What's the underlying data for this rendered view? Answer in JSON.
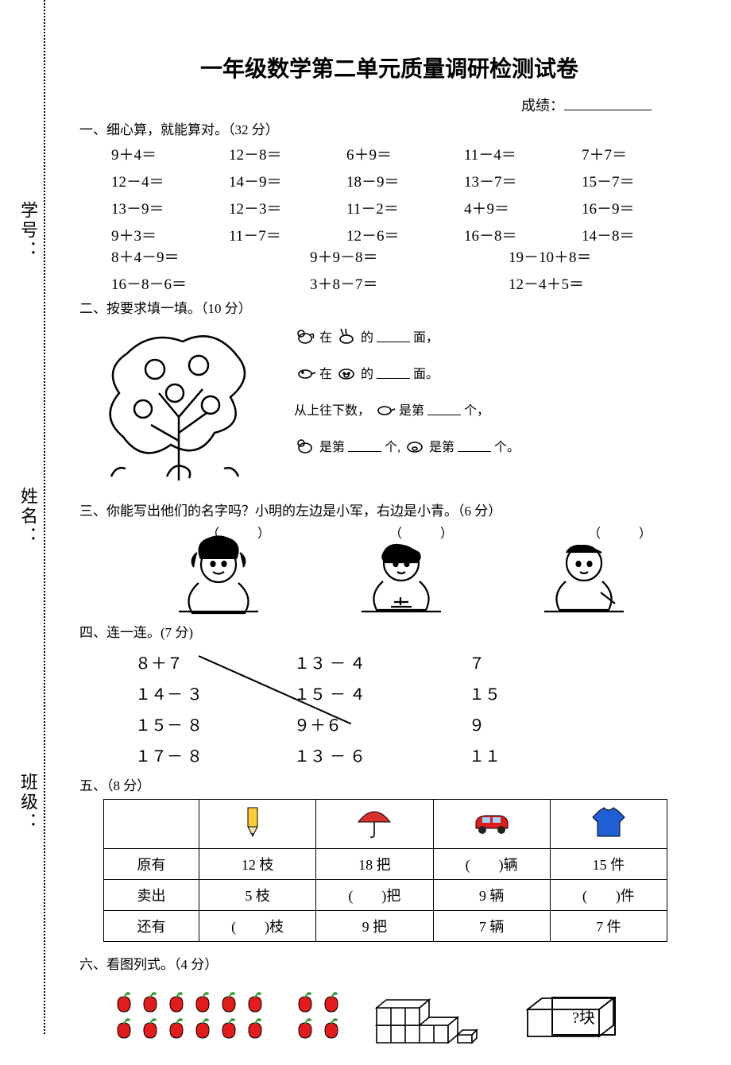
{
  "title": "一年级数学第二单元质量调研检测试卷",
  "score_label": "成绩：",
  "side": {
    "class": "班级：",
    "name": "姓名：",
    "id": "学号："
  },
  "sections": {
    "s1": {
      "heading": "一、细心算，就能算对。（32 分）"
    },
    "s2": {
      "heading": "二、按要求填一填。（10 分）"
    },
    "s3": {
      "heading": "三、你能写出他们的名字吗？小明的左边是小军，右边是小青。（6 分）"
    },
    "s4": {
      "heading": "四、连一连。(7 分)"
    },
    "s5": {
      "heading": "五、（8 分）"
    },
    "s6": {
      "heading": "六、看图列式。（4 分）"
    }
  },
  "q1": {
    "rows5": [
      [
        "9＋4＝",
        "12－8＝",
        "6＋9＝",
        "11－4＝",
        "7＋7＝"
      ],
      [
        "12－4＝",
        "14－9＝",
        "18－9＝",
        "13－7＝",
        "15－7＝"
      ],
      [
        "13－9＝",
        "12－3＝",
        "11－2＝",
        "4＋9＝",
        "16－9＝"
      ],
      [
        "9＋3＝",
        "11－7＝",
        "12－6＝",
        "16－8＝",
        "14－8＝"
      ]
    ],
    "rows3": [
      [
        "8＋4－9＝",
        "9＋9－8＝",
        "19－10＋8＝"
      ],
      [
        "16－8－6＝",
        "3＋8－7＝",
        "12－4＋5＝"
      ]
    ]
  },
  "q2": {
    "l1a": "在",
    "l1b": "的",
    "l1c": "面，",
    "l2a": "在",
    "l2b": "的",
    "l2c": "面。",
    "l3a": "从上往下数，",
    "l3b": "是第",
    "l3c": "个，",
    "l4a": "是第",
    "l4b": "个,",
    "l4c": "是第",
    "l4d": "个。"
  },
  "q3": {
    "blank": "（　　　）"
  },
  "q4": {
    "col1": [
      "８＋７",
      "１４－ ３",
      "１５－ ８",
      "１７－ ８"
    ],
    "col2": [
      "１３ － ４",
      "１５ － ４",
      "９＋６",
      "１３ － ６"
    ],
    "col3": [
      "７",
      "１５",
      "９",
      "１１"
    ]
  },
  "q5": {
    "row_labels": [
      "原有",
      "卖出",
      "还有"
    ],
    "icons": [
      "pencil",
      "umbrella",
      "car",
      "shirt"
    ],
    "cells": [
      [
        "12 枝",
        "18 把",
        "(　　)辆",
        "15 件"
      ],
      [
        "5 枝",
        "(　　)把",
        "9 辆",
        "(　　)件"
      ],
      [
        "(　　)枝",
        "9 把",
        "7 辆",
        "7 件"
      ]
    ]
  },
  "q6": {
    "block_label": "?块"
  },
  "colors": {
    "apple_red": "#e41b1b",
    "apple_leaf": "#2f9a2f",
    "pencil_body": "#ffcc33",
    "pencil_tip": "#f5deb3",
    "pencil_lead": "#333",
    "umbrella": "#d8322a",
    "umbrella_handle": "#333",
    "car_body": "#e01b1b",
    "car_window": "#9cd3ff",
    "car_wheel": "#222",
    "shirt": "#1e5fd6"
  }
}
